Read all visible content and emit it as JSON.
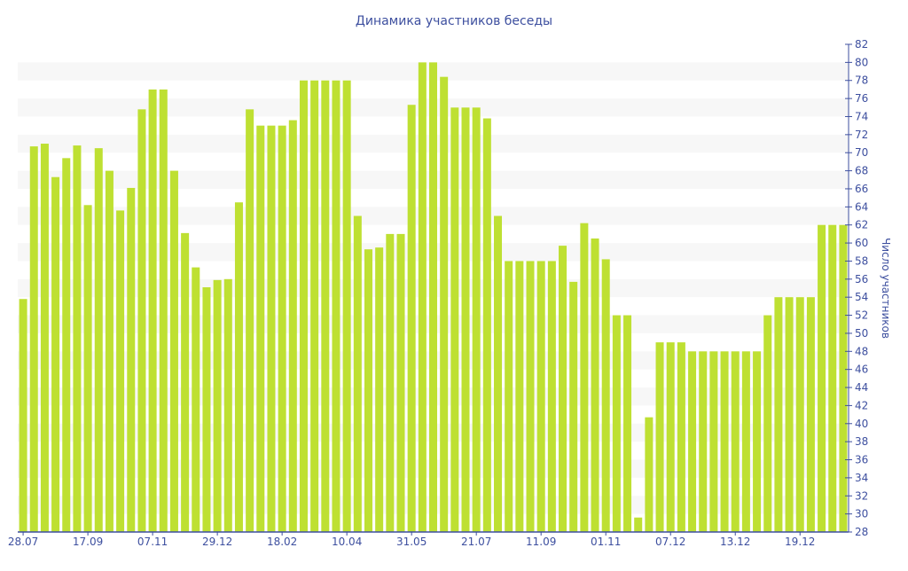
{
  "chart_data": {
    "type": "bar",
    "title": "Динамика участников беседы",
    "xlabel": "",
    "ylabel": "Число участников",
    "ylim": [
      28,
      82
    ],
    "ytick_step": 2,
    "axis_position": "right",
    "grid": "alternating bands",
    "x_tick_labels": [
      "28.07",
      "17.09",
      "07.11",
      "29.12",
      "18.02",
      "10.04",
      "31.05",
      "21.07",
      "11.09",
      "01.11",
      "07.12",
      "13.12",
      "19.12"
    ],
    "x_tick_every": 6,
    "values": [
      53.8,
      70.7,
      71,
      67.3,
      69.4,
      70.8,
      64.2,
      70.5,
      68,
      63.6,
      66.1,
      74.8,
      77,
      77,
      68,
      61.1,
      57.3,
      55.1,
      55.9,
      56,
      64.5,
      74.8,
      73,
      73,
      73,
      73.6,
      78,
      78,
      78,
      78,
      78,
      63,
      59.3,
      59.5,
      61,
      61,
      75.3,
      80,
      80,
      78.4,
      75,
      75,
      75,
      73.8,
      63,
      58,
      58,
      58,
      58,
      58,
      59.7,
      55.7,
      62.2,
      60.5,
      58.2,
      52,
      52,
      29.6,
      40.7,
      49,
      49,
      49,
      48,
      48,
      48,
      48,
      48,
      48,
      48,
      52,
      54,
      54,
      54,
      54,
      62,
      62,
      62
    ],
    "colors": {
      "bar": "#bee032",
      "axis": "#3d4f9f",
      "band": "#f7f7f7",
      "title": "#3d4f9f"
    }
  }
}
